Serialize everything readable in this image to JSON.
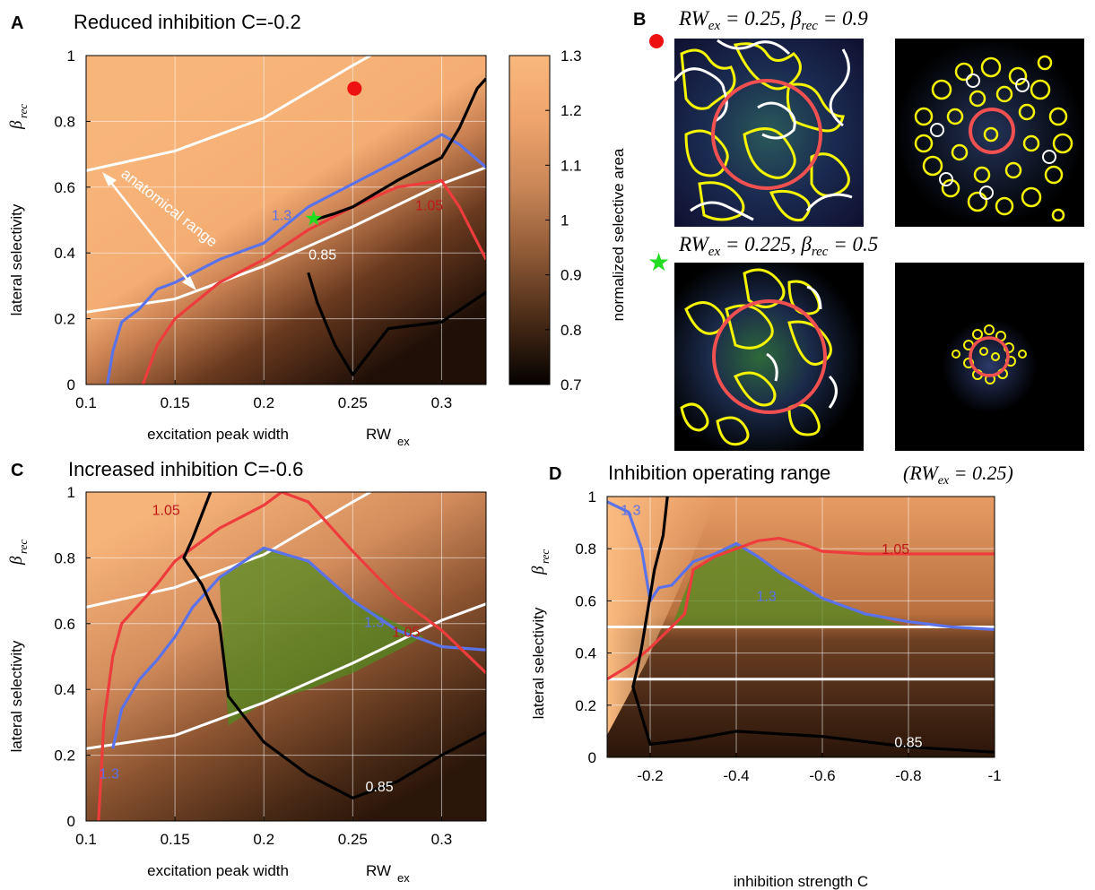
{
  "panels": {
    "A": {
      "letter": "A",
      "title": "Reduced inhibition C=-0.2"
    },
    "B": {
      "letter": "B",
      "row1_label": "RW",
      "row1_label_rest": " = 0.25, β",
      "row1_label_end": " = 0.9",
      "row2_label": "RW",
      "row2_label_rest": " = 0.225, β",
      "row2_label_end": " = 0.5",
      "sub_ex": "ex",
      "sub_rec": "rec"
    },
    "C": {
      "letter": "C",
      "title": "Increased inhibition C=-0.6"
    },
    "D": {
      "letter": "D",
      "title": "Inhibition operating range",
      "title_suffix": "(RW",
      "title_suffix_end": " = 0.25)"
    }
  },
  "axes": {
    "y_label": "lateral selectivity",
    "y_sym": "β",
    "y_sym_sub": "rec",
    "x_label_AC": "excitation peak width",
    "x_sym_AC": "RW",
    "x_sym_sub": "ex",
    "x_label_D": "inhibition strength C"
  },
  "colorbar": {
    "label": "normalized selective area",
    "ticks": [
      "1.3",
      "1.2",
      "1.1",
      "1",
      "0.9",
      "0.8",
      "0.7"
    ],
    "range": [
      0.7,
      1.3
    ]
  },
  "annotations": {
    "anatomical_range": "anatomical range"
  },
  "colors": {
    "peach": "#f9b87c",
    "dark": "#1a0d06",
    "blue": "#5b72e8",
    "red": "#ee3c3c",
    "white": "#ffffff",
    "black": "#000000",
    "green_fill": "#4f8a1f",
    "marker_red": "#ee1111",
    "marker_green": "#22dd22"
  },
  "chart_data": [
    {
      "type": "heatmap",
      "panel": "A",
      "title": "Reduced inhibition C=-0.2",
      "xlabel": "excitation peak width RW_ex",
      "ylabel": "lateral selectivity β_rec",
      "xlim": [
        0.1,
        0.325
      ],
      "ylim": [
        0,
        1
      ],
      "xticks": [
        "0.1",
        "0.15",
        "0.2",
        "0.25",
        "0.3"
      ],
      "yticks": [
        "0",
        "0.2",
        "0.4",
        "0.6",
        "0.8",
        "1"
      ],
      "contours": [
        {
          "level": "1.3",
          "color": "blue",
          "x": [
            0.112,
            0.115,
            0.12,
            0.13,
            0.14,
            0.15,
            0.175,
            0.2,
            0.225,
            0.25,
            0.275,
            0.3,
            0.31,
            0.325
          ],
          "y": [
            0,
            0.1,
            0.19,
            0.23,
            0.29,
            0.31,
            0.38,
            0.43,
            0.54,
            0.61,
            0.68,
            0.76,
            0.73,
            0.66
          ]
        },
        {
          "level": "1.05",
          "color": "red",
          "x": [
            0.132,
            0.14,
            0.15,
            0.175,
            0.2,
            0.225,
            0.25,
            0.275,
            0.3,
            0.31,
            0.325
          ],
          "y": [
            0,
            0.12,
            0.2,
            0.31,
            0.38,
            0.47,
            0.54,
            0.6,
            0.62,
            0.54,
            0.38
          ]
        },
        {
          "level": "0.85",
          "color": "black",
          "x": [
            0.225,
            0.23,
            0.24,
            0.25,
            0.26,
            0.27,
            0.3,
            0.325
          ],
          "y": [
            0.34,
            0.25,
            0.12,
            0.03,
            0.1,
            0.17,
            0.19,
            0.28
          ]
        },
        {
          "level": "0.85",
          "color": "black",
          "x": [
            0.228,
            0.24,
            0.25,
            0.275,
            0.3,
            0.31,
            0.315,
            0.32,
            0.325
          ],
          "y": [
            0.5,
            0.52,
            0.54,
            0.62,
            0.69,
            0.78,
            0.84,
            0.9,
            0.93
          ]
        }
      ],
      "boundary_lines": [
        {
          "x": [
            0.1,
            0.15,
            0.2,
            0.25,
            0.3,
            0.325
          ],
          "y": [
            0.22,
            0.26,
            0.36,
            0.48,
            0.61,
            0.66
          ]
        },
        {
          "x": [
            0.1,
            0.15,
            0.2,
            0.25,
            0.26
          ],
          "y": [
            0.65,
            0.71,
            0.81,
            0.97,
            1.0
          ]
        }
      ],
      "markers": [
        {
          "shape": "dot",
          "color": "marker_red",
          "x": 0.251,
          "y": 0.9
        },
        {
          "shape": "star",
          "color": "marker_green",
          "x": 0.228,
          "y": 0.505
        }
      ],
      "contour_labels": [
        {
          "text": "1.3",
          "x": 0.21,
          "y": 0.5,
          "color": "blue"
        },
        {
          "text": "1.05",
          "x": 0.293,
          "y": 0.53,
          "color": "red"
        },
        {
          "text": "0.85",
          "x": 0.233,
          "y": 0.38,
          "color": "white"
        }
      ]
    },
    {
      "type": "heatmap",
      "panel": "C",
      "title": "Increased inhibition C=-0.6",
      "xlabel": "excitation peak width RW_ex",
      "ylabel": "lateral selectivity β_rec",
      "xlim": [
        0.1,
        0.325
      ],
      "ylim": [
        0,
        1
      ],
      "xticks": [
        "0.1",
        "0.15",
        "0.2",
        "0.25",
        "0.3"
      ],
      "yticks": [
        "0",
        "0.2",
        "0.4",
        "0.6",
        "0.8",
        "1"
      ],
      "contours": [
        {
          "level": "1.3",
          "color": "blue",
          "x": [
            0.115,
            0.12,
            0.13,
            0.14,
            0.15,
            0.16,
            0.175,
            0.2,
            0.225,
            0.25,
            0.275,
            0.3,
            0.325
          ],
          "y": [
            0.22,
            0.34,
            0.43,
            0.49,
            0.56,
            0.65,
            0.74,
            0.83,
            0.79,
            0.67,
            0.58,
            0.53,
            0.52
          ]
        },
        {
          "level": "1.05",
          "color": "red",
          "x": [
            0.107,
            0.11,
            0.115,
            0.12,
            0.13,
            0.14,
            0.15,
            0.175,
            0.2,
            0.21,
            0.225,
            0.25,
            0.275,
            0.3,
            0.325
          ],
          "y": [
            0,
            0.3,
            0.5,
            0.6,
            0.66,
            0.72,
            0.79,
            0.89,
            0.96,
            1.0,
            0.97,
            0.82,
            0.68,
            0.58,
            0.45
          ]
        },
        {
          "level": "0.85",
          "color": "black",
          "x": [
            0.17,
            0.16,
            0.155,
            0.165,
            0.175,
            0.18,
            0.2,
            0.225,
            0.25,
            0.275,
            0.3,
            0.325
          ],
          "y": [
            1.0,
            0.86,
            0.8,
            0.72,
            0.6,
            0.38,
            0.24,
            0.14,
            0.07,
            0.12,
            0.2,
            0.27
          ]
        }
      ],
      "boundary_lines": [
        {
          "x": [
            0.1,
            0.15,
            0.2,
            0.25,
            0.3,
            0.325
          ],
          "y": [
            0.22,
            0.26,
            0.36,
            0.48,
            0.61,
            0.66
          ]
        },
        {
          "x": [
            0.1,
            0.15,
            0.2,
            0.25,
            0.26
          ],
          "y": [
            0.65,
            0.71,
            0.81,
            0.97,
            1.0
          ]
        }
      ],
      "operating_region": {
        "x": [
          0.175,
          0.2,
          0.225,
          0.25,
          0.275,
          0.29,
          0.25,
          0.225,
          0.2,
          0.18
        ],
        "y": [
          0.74,
          0.83,
          0.79,
          0.67,
          0.6,
          0.56,
          0.45,
          0.4,
          0.36,
          0.29
        ]
      },
      "contour_labels": [
        {
          "text": "1.05",
          "x": 0.145,
          "y": 0.93,
          "color": "red"
        },
        {
          "text": "1.05",
          "x": 0.28,
          "y": 0.56,
          "color": "red"
        },
        {
          "text": "1.3",
          "x": 0.262,
          "y": 0.59,
          "color": "blue"
        },
        {
          "text": "1.3",
          "x": 0.113,
          "y": 0.13,
          "color": "blue"
        },
        {
          "text": "0.85",
          "x": 0.265,
          "y": 0.09,
          "color": "white"
        }
      ]
    },
    {
      "type": "heatmap",
      "panel": "D",
      "title": "Inhibition operating range (RW_ex = 0.25)",
      "xlabel": "inhibition strength C",
      "ylabel": "lateral selectivity β_rec",
      "xlim": [
        -0.1,
        -1
      ],
      "ylim": [
        0,
        1
      ],
      "xticks": [
        "-0.2",
        "-0.4",
        "-0.6",
        "-0.8",
        "-1"
      ],
      "yticks": [
        "0",
        "0.2",
        "0.4",
        "0.6",
        "0.8",
        "1"
      ],
      "contours": [
        {
          "level": "1.3",
          "color": "blue",
          "x": [
            -0.1,
            -0.15,
            -0.18,
            -0.2,
            -0.22,
            -0.25,
            -0.3,
            -0.35,
            -0.4,
            -0.45,
            -0.5,
            -0.6,
            -0.7,
            -0.8,
            -0.9,
            -1.0
          ],
          "y": [
            0.98,
            0.94,
            0.8,
            0.6,
            0.65,
            0.66,
            0.75,
            0.78,
            0.82,
            0.77,
            0.71,
            0.61,
            0.55,
            0.52,
            0.5,
            0.49
          ]
        },
        {
          "level": "1.05",
          "color": "red",
          "x": [
            -0.1,
            -0.15,
            -0.2,
            -0.25,
            -0.28,
            -0.3,
            -0.35,
            -0.4,
            -0.45,
            -0.5,
            -0.55,
            -0.6,
            -0.7,
            -0.8,
            -0.9,
            -1.0
          ],
          "y": [
            0.3,
            0.35,
            0.42,
            0.5,
            0.55,
            0.72,
            0.77,
            0.8,
            0.83,
            0.84,
            0.82,
            0.79,
            0.78,
            0.78,
            0.78,
            0.78
          ]
        },
        {
          "level": "0.85",
          "color": "black",
          "x": [
            -0.24,
            -0.23,
            -0.21,
            -0.2,
            -0.19,
            -0.18,
            -0.17,
            -0.16,
            -0.2,
            -0.3,
            -0.4,
            -0.5,
            -0.6,
            -0.7,
            -0.8,
            -1.0
          ],
          "y": [
            1.0,
            0.85,
            0.72,
            0.62,
            0.52,
            0.42,
            0.34,
            0.27,
            0.05,
            0.07,
            0.1,
            0.09,
            0.08,
            0.06,
            0.04,
            0.02
          ]
        }
      ],
      "boundary_lines": [
        {
          "x": [
            -0.1,
            -1.0
          ],
          "y": [
            0.5,
            0.5
          ]
        },
        {
          "x": [
            -0.1,
            -1.0
          ],
          "y": [
            0.3,
            0.3
          ]
        }
      ],
      "operating_region": {
        "x": [
          -0.25,
          -0.3,
          -0.35,
          -0.4,
          -0.45,
          -0.5,
          -0.6,
          -0.7,
          -0.8,
          -0.3
        ],
        "y": [
          0.5,
          0.72,
          0.77,
          0.82,
          0.77,
          0.71,
          0.61,
          0.55,
          0.5,
          0.5
        ]
      },
      "contour_labels": [
        {
          "text": "1.3",
          "x": -0.155,
          "y": 0.93,
          "color": "blue"
        },
        {
          "text": "1.3",
          "x": -0.47,
          "y": 0.6,
          "color": "blue"
        },
        {
          "text": "1.05",
          "x": -0.77,
          "y": 0.78,
          "color": "red"
        },
        {
          "text": "0.85",
          "x": -0.8,
          "y": 0.04,
          "color": "white"
        }
      ]
    }
  ]
}
